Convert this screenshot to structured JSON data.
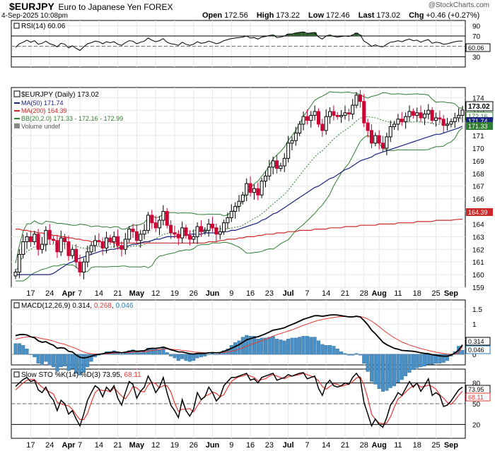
{
  "header": {
    "symbol": "$EURJPY",
    "description": "Euro to Japanese Yen FOREX",
    "datetime": "4-Sep-2025 10:08pm",
    "watermark": "@StockCharts.com",
    "open_label": "Open",
    "open": "172.56",
    "high_label": "High",
    "high": "173.22",
    "low_label": "Low",
    "low": "172.46",
    "last_label": "Last",
    "last": "173.02",
    "chg_label": "Chg",
    "chg": "+0.46 (+0.27%)"
  },
  "colors": {
    "up": "#000000",
    "down": "#cc0033",
    "ma50": "#1a237e",
    "ma200": "#cc2a2a",
    "bb": "#2e7d32",
    "macd": "#000000",
    "signal": "#e53935",
    "hist": "#4a90c4",
    "rsi_fill": "#2e5e2e"
  },
  "legend": {
    "price": "$EURJPY (Daily) 173.02",
    "ma50": "MA(50) 171.74",
    "ma200": "MA(200) 164.39",
    "bb": "BB(20,2.0) 171.33 - 172.16 - 172.99",
    "volume": "Volume undef",
    "rsi": "RSI(14) 60.06",
    "macd_prefix": "MACD(12,26,9)",
    "macd_val": "0.314",
    "macd_sig": "0.268",
    "macd_hist": "0.046",
    "sto_prefix": "Slow STO %K(14) %D(3)",
    "sto_k": "73.95",
    "sto_d": "68.11"
  },
  "badges": {
    "price_last": "173.02",
    "bb_mid": "172.16",
    "ma50": "171.74",
    "bb_low": "171.33",
    "ma200": "164.39",
    "rsi": "60.06",
    "macd": "0.314",
    "macd_hist": "0.046",
    "sto_k": "73.95",
    "sto_d": "68.11"
  },
  "chart_data": {
    "type": "candlestick",
    "price_axis": {
      "ticks": [
        159,
        160,
        161,
        162,
        163,
        164,
        165,
        166,
        167,
        168,
        169,
        170,
        171,
        172,
        173,
        174
      ],
      "range": [
        159,
        174.8
      ]
    },
    "rsi_axis": {
      "ticks": [
        90,
        70,
        50,
        30
      ],
      "range": [
        10,
        100
      ]
    },
    "macd_axis": {
      "ticks": [
        1.5,
        1.0,
        0.5,
        0.0
      ],
      "range": [
        -0.35,
        1.8
      ]
    },
    "sto_axis": {
      "ticks": [
        80,
        50,
        20
      ],
      "range": [
        0,
        100
      ]
    },
    "x_labels": [
      {
        "i": 4,
        "t": "17"
      },
      {
        "i": 9,
        "t": "24"
      },
      {
        "i": 14,
        "t": "Apr"
      },
      {
        "i": 17,
        "t": "7"
      },
      {
        "i": 22,
        "t": "14"
      },
      {
        "i": 27,
        "t": "21"
      },
      {
        "i": 32,
        "t": "May"
      },
      {
        "i": 37,
        "t": "12"
      },
      {
        "i": 42,
        "t": "19"
      },
      {
        "i": 47,
        "t": "26"
      },
      {
        "i": 52,
        "t": "Jun"
      },
      {
        "i": 57,
        "t": "9"
      },
      {
        "i": 62,
        "t": "16"
      },
      {
        "i": 67,
        "t": "23"
      },
      {
        "i": 72,
        "t": "Jul"
      },
      {
        "i": 77,
        "t": "7"
      },
      {
        "i": 82,
        "t": "14"
      },
      {
        "i": 87,
        "t": "21"
      },
      {
        "i": 92,
        "t": "28"
      },
      {
        "i": 96,
        "t": "Aug"
      },
      {
        "i": 101,
        "t": "11"
      },
      {
        "i": 106,
        "t": "18"
      },
      {
        "i": 111,
        "t": "25"
      },
      {
        "i": 115,
        "t": "Sep"
      }
    ],
    "closes": [
      160.2,
      161.6,
      162.6,
      163.0,
      162.6,
      163.2,
      162.0,
      162.4,
      163.5,
      162.8,
      162.7,
      161.8,
      162.9,
      162.6,
      161.5,
      162.0,
      161.0,
      160.2,
      161.0,
      161.8,
      162.3,
      162.7,
      162.6,
      162.1,
      162.9,
      162.6,
      163.0,
      162.3,
      162.0,
      162.8,
      163.6,
      163.4,
      162.7,
      163.2,
      163.5,
      164.7,
      164.1,
      163.7,
      164.3,
      165.0,
      163.9,
      163.3,
      163.2,
      162.9,
      163.7,
      163.1,
      162.8,
      163.0,
      163.8,
      163.4,
      163.5,
      164.0,
      163.7,
      163.2,
      163.4,
      164.1,
      164.5,
      165.0,
      165.4,
      165.8,
      166.3,
      167.2,
      166.5,
      166.8,
      166.3,
      167.4,
      167.8,
      168.5,
      169.0,
      168.4,
      168.6,
      169.2,
      170.4,
      170.6,
      171.2,
      171.9,
      172.5,
      172.2,
      172.6,
      172.9,
      171.9,
      171.4,
      172.5,
      172.9,
      172.6,
      172.5,
      172.6,
      172.8,
      172.7,
      173.4,
      174.2,
      173.7,
      172.0,
      171.4,
      170.4,
      171.0,
      170.4,
      170.0,
      170.9,
      171.7,
      171.9,
      172.3,
      172.1,
      172.5,
      172.9,
      172.6,
      172.8,
      172.4,
      172.7,
      173.0,
      172.2,
      172.4,
      172.3,
      171.8,
      171.9,
      172.1,
      172.4,
      172.6,
      173.02
    ],
    "ma50": [
      160.0,
      160.0,
      160.0,
      160.0,
      160.0,
      160.0,
      160.0,
      160.0,
      160.0,
      160.0,
      160.1,
      160.3,
      160.5,
      160.7,
      160.9,
      161.0,
      161.2,
      161.3,
      161.4,
      161.5,
      161.6,
      161.7,
      161.8,
      161.9,
      161.9,
      162.0,
      162.0,
      162.1,
      162.1,
      162.2,
      162.3,
      162.4,
      162.4,
      162.5,
      162.6,
      162.6,
      162.7,
      162.8,
      162.8,
      162.9,
      163.0,
      163.0,
      163.0,
      163.1,
      163.1,
      163.1,
      163.2,
      163.2,
      163.2,
      163.2,
      163.3,
      163.3,
      163.3,
      163.3,
      163.3,
      163.4,
      163.4,
      163.5,
      163.5,
      163.6,
      163.7,
      163.8,
      163.9,
      164.0,
      164.1,
      164.3,
      164.4,
      164.6,
      164.8,
      164.9,
      165.1,
      165.3,
      165.5,
      165.7,
      165.9,
      166.1,
      166.3,
      166.5,
      166.7,
      166.9,
      167.0,
      167.2,
      167.4,
      167.6,
      167.7,
      167.9,
      168.1,
      168.3,
      168.4,
      168.6,
      168.8,
      169.0,
      169.1,
      169.2,
      169.3,
      169.5,
      169.6,
      169.7,
      169.8,
      169.9,
      170.0,
      170.1,
      170.2,
      170.3,
      170.4,
      170.5,
      170.6,
      170.7,
      170.8,
      170.9,
      171.0,
      171.1,
      171.1,
      171.2,
      171.3,
      171.4,
      171.5,
      171.6,
      171.74
    ],
    "ma200": [
      163.6,
      163.6,
      163.5,
      163.5,
      163.4,
      163.4,
      163.3,
      163.3,
      163.2,
      163.2,
      163.1,
      163.1,
      163.0,
      163.0,
      162.9,
      162.9,
      162.8,
      162.8,
      162.7,
      162.7,
      162.6,
      162.6,
      162.6,
      162.6,
      162.6,
      162.6,
      162.5,
      162.5,
      162.5,
      162.5,
      162.5,
      162.5,
      162.5,
      162.5,
      162.5,
      162.5,
      162.5,
      162.5,
      162.5,
      162.5,
      162.5,
      162.5,
      162.5,
      162.5,
      162.5,
      162.5,
      162.5,
      162.5,
      162.5,
      162.5,
      162.5,
      162.6,
      162.6,
      162.6,
      162.7,
      162.7,
      162.8,
      162.8,
      162.8,
      162.9,
      162.9,
      163.0,
      163.0,
      163.0,
      163.1,
      163.1,
      163.2,
      163.2,
      163.2,
      163.3,
      163.3,
      163.3,
      163.4,
      163.4,
      163.4,
      163.5,
      163.5,
      163.5,
      163.5,
      163.6,
      163.6,
      163.6,
      163.6,
      163.7,
      163.7,
      163.7,
      163.7,
      163.8,
      163.8,
      163.8,
      163.8,
      163.9,
      163.9,
      163.9,
      163.9,
      163.9,
      164.0,
      164.0,
      164.0,
      164.0,
      164.0,
      164.1,
      164.1,
      164.1,
      164.1,
      164.1,
      164.2,
      164.2,
      164.2,
      164.2,
      164.2,
      164.3,
      164.3,
      164.3,
      164.3,
      164.3,
      164.35,
      164.37,
      164.39
    ],
    "rsi": [
      48,
      55,
      58,
      62,
      58,
      61,
      54,
      56,
      60,
      55,
      53,
      49,
      56,
      54,
      47,
      51,
      46,
      42,
      49,
      55,
      57,
      60,
      59,
      55,
      59,
      57,
      59,
      54,
      52,
      57,
      61,
      60,
      55,
      58,
      60,
      66,
      62,
      59,
      61,
      65,
      58,
      55,
      54,
      52,
      58,
      54,
      52,
      54,
      59,
      56,
      57,
      60,
      58,
      55,
      57,
      61,
      63,
      65,
      66,
      67,
      68,
      70,
      66,
      67,
      64,
      68,
      69,
      71,
      72,
      67,
      68,
      70,
      74,
      74,
      76,
      77,
      78,
      75,
      76,
      77,
      68,
      64,
      70,
      72,
      69,
      68,
      69,
      70,
      69,
      72,
      76,
      72,
      60,
      56,
      50,
      53,
      50,
      49,
      54,
      58,
      59,
      61,
      59,
      62,
      64,
      61,
      62,
      58,
      61,
      63,
      56,
      58,
      57,
      54,
      55,
      57,
      59,
      60,
      60.06
    ],
    "macd": [
      0.62,
      0.65,
      0.66,
      0.64,
      0.58,
      0.55,
      0.45,
      0.4,
      0.42,
      0.35,
      0.3,
      0.2,
      0.22,
      0.2,
      0.1,
      0.08,
      -0.02,
      -0.1,
      -0.12,
      -0.1,
      -0.06,
      -0.02,
      0.0,
      0.02,
      0.05,
      0.06,
      0.08,
      0.07,
      0.05,
      0.07,
      0.1,
      0.12,
      0.1,
      0.11,
      0.12,
      0.18,
      0.2,
      0.2,
      0.21,
      0.24,
      0.2,
      0.15,
      0.12,
      0.08,
      0.08,
      0.05,
      0.02,
      0.01,
      0.03,
      0.03,
      0.03,
      0.05,
      0.06,
      0.05,
      0.06,
      0.1,
      0.14,
      0.2,
      0.26,
      0.32,
      0.4,
      0.48,
      0.52,
      0.56,
      0.58,
      0.63,
      0.68,
      0.74,
      0.8,
      0.82,
      0.85,
      0.88,
      0.94,
      0.99,
      1.04,
      1.1,
      1.16,
      1.2,
      1.24,
      1.28,
      1.28,
      1.26,
      1.28,
      1.3,
      1.31,
      1.3,
      1.28,
      1.26,
      1.24,
      1.24,
      1.26,
      1.24,
      1.12,
      0.98,
      0.8,
      0.68,
      0.54,
      0.4,
      0.32,
      0.26,
      0.2,
      0.17,
      0.13,
      0.12,
      0.11,
      0.1,
      0.08,
      0.05,
      0.03,
      0.02,
      -0.01,
      -0.03,
      -0.05,
      -0.06,
      -0.06,
      -0.02,
      0.04,
      0.14,
      0.314
    ],
    "macd_signal": [
      0.5,
      0.53,
      0.56,
      0.58,
      0.58,
      0.58,
      0.55,
      0.52,
      0.5,
      0.47,
      0.44,
      0.39,
      0.36,
      0.33,
      0.28,
      0.24,
      0.19,
      0.13,
      0.08,
      0.04,
      0.02,
      0.01,
      0.01,
      0.01,
      0.02,
      0.03,
      0.04,
      0.05,
      0.05,
      0.05,
      0.06,
      0.07,
      0.08,
      0.09,
      0.09,
      0.11,
      0.13,
      0.14,
      0.16,
      0.17,
      0.18,
      0.17,
      0.16,
      0.15,
      0.13,
      0.12,
      0.1,
      0.08,
      0.07,
      0.06,
      0.05,
      0.05,
      0.05,
      0.05,
      0.05,
      0.06,
      0.08,
      0.1,
      0.13,
      0.17,
      0.21,
      0.27,
      0.32,
      0.36,
      0.41,
      0.45,
      0.5,
      0.55,
      0.6,
      0.65,
      0.69,
      0.73,
      0.77,
      0.81,
      0.86,
      0.91,
      0.96,
      1.0,
      1.05,
      1.09,
      1.13,
      1.15,
      1.18,
      1.2,
      1.22,
      1.24,
      1.25,
      1.25,
      1.25,
      1.25,
      1.25,
      1.25,
      1.22,
      1.17,
      1.1,
      1.01,
      0.92,
      0.81,
      0.72,
      0.63,
      0.55,
      0.48,
      0.41,
      0.36,
      0.31,
      0.27,
      0.23,
      0.19,
      0.16,
      0.13,
      0.1,
      0.07,
      0.05,
      0.03,
      0.01,
      0.0,
      0.01,
      0.05,
      0.268
    ],
    "sto_k": [
      75,
      80,
      85,
      88,
      82,
      84,
      70,
      66,
      74,
      62,
      55,
      40,
      55,
      50,
      35,
      40,
      28,
      18,
      35,
      55,
      66,
      76,
      72,
      60,
      74,
      68,
      76,
      58,
      48,
      66,
      82,
      78,
      58,
      68,
      74,
      90,
      80,
      66,
      74,
      88,
      66,
      48,
      40,
      30,
      56,
      40,
      32,
      42,
      66,
      56,
      60,
      74,
      66,
      54,
      60,
      76,
      82,
      88,
      88,
      90,
      92,
      94,
      84,
      86,
      80,
      88,
      90,
      92,
      94,
      84,
      86,
      88,
      92,
      90,
      92,
      94,
      95,
      86,
      88,
      90,
      72,
      62,
      78,
      84,
      76,
      74,
      76,
      80,
      78,
      88,
      94,
      86,
      52,
      35,
      18,
      28,
      20,
      16,
      30,
      48,
      56,
      66,
      62,
      72,
      82,
      74,
      80,
      68,
      76,
      86,
      62,
      66,
      62,
      46,
      48,
      54,
      62,
      70,
      73.95
    ],
    "sto_d": [
      70,
      75,
      80,
      84,
      85,
      85,
      79,
      74,
      70,
      67,
      64,
      52,
      50,
      48,
      47,
      42,
      34,
      27,
      27,
      36,
      52,
      66,
      71,
      69,
      69,
      67,
      73,
      67,
      61,
      57,
      65,
      75,
      73,
      68,
      67,
      77,
      81,
      79,
      73,
      76,
      76,
      67,
      51,
      39,
      42,
      42,
      43,
      38,
      47,
      55,
      61,
      63,
      67,
      65,
      60,
      63,
      73,
      82,
      86,
      89,
      90,
      92,
      90,
      88,
      83,
      85,
      86,
      90,
      92,
      90,
      88,
      86,
      89,
      90,
      91,
      92,
      94,
      92,
      90,
      88,
      83,
      75,
      71,
      75,
      79,
      78,
      75,
      77,
      78,
      82,
      87,
      89,
      77,
      58,
      35,
      27,
      22,
      21,
      22,
      31,
      45,
      57,
      61,
      67,
      72,
      76,
      79,
      74,
      75,
      77,
      75,
      71,
      63,
      58,
      52,
      49,
      55,
      62,
      68.11
    ]
  }
}
